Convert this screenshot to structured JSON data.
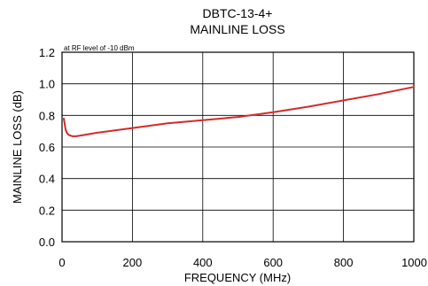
{
  "chart_data": {
    "type": "line",
    "title": "DBTC-13-4+",
    "subtitle": "MAINLINE LOSS",
    "annotation": "at RF level of -10 dBm",
    "xlabel": "FREQUENCY (MHz)",
    "ylabel": "MAINLINE LOSS (dB)",
    "xlim": [
      0,
      1000
    ],
    "ylim": [
      0,
      1.2
    ],
    "x_ticks": [
      0,
      200,
      400,
      600,
      800,
      1000
    ],
    "x_tick_labels": [
      "0",
      "200",
      "400",
      "600",
      "800",
      "1000"
    ],
    "y_ticks": [
      0,
      0.2,
      0.4,
      0.6,
      0.8,
      1.0,
      1.2
    ],
    "y_tick_labels": [
      "0.0",
      "0.2",
      "0.4",
      "0.6",
      "0.8",
      "1.0",
      "1.2"
    ],
    "grid": true,
    "series": [
      {
        "color": "#d42a2a",
        "x": [
          5,
          8,
          10,
          15,
          20,
          30,
          40,
          60,
          100,
          150,
          200,
          300,
          400,
          500,
          600,
          700,
          800,
          900,
          1000
        ],
        "y": [
          0.78,
          0.74,
          0.71,
          0.685,
          0.675,
          0.668,
          0.668,
          0.675,
          0.69,
          0.705,
          0.72,
          0.75,
          0.77,
          0.79,
          0.82,
          0.855,
          0.895,
          0.935,
          0.98
        ]
      }
    ]
  }
}
